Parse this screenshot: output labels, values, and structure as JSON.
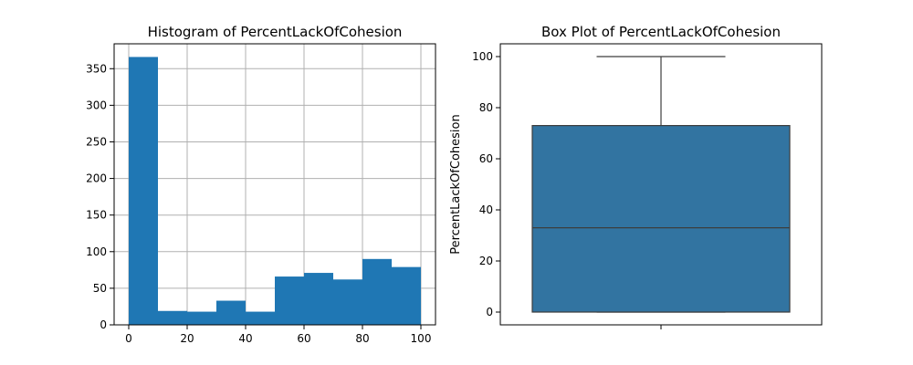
{
  "chart_data": [
    {
      "type": "bar",
      "title": "Histogram of PercentLackOfCohesion",
      "xlabel": "",
      "ylabel": "",
      "bin_edges": [
        0,
        10,
        20,
        30,
        40,
        50,
        60,
        70,
        80,
        90,
        100
      ],
      "values": [
        366,
        19,
        18,
        33,
        18,
        66,
        71,
        62,
        90,
        79
      ],
      "xlim": [
        -5,
        105
      ],
      "ylim": [
        0,
        384
      ],
      "xticks": [
        0,
        20,
        40,
        60,
        80,
        100
      ],
      "yticks": [
        0,
        50,
        100,
        150,
        200,
        250,
        300,
        350
      ],
      "grid": true,
      "color": "#1f77b4"
    },
    {
      "type": "box",
      "title": "Box Plot of PercentLackOfCohesion",
      "xlabel": "",
      "ylabel": "PercentLackOfCohesion",
      "stats": {
        "min": 0,
        "q1": 0,
        "median": 33,
        "q3": 73,
        "max": 100
      },
      "ylim": [
        -5,
        105
      ],
      "yticks": [
        0,
        20,
        40,
        60,
        80,
        100
      ],
      "grid": false,
      "color": "#3274a1"
    }
  ]
}
